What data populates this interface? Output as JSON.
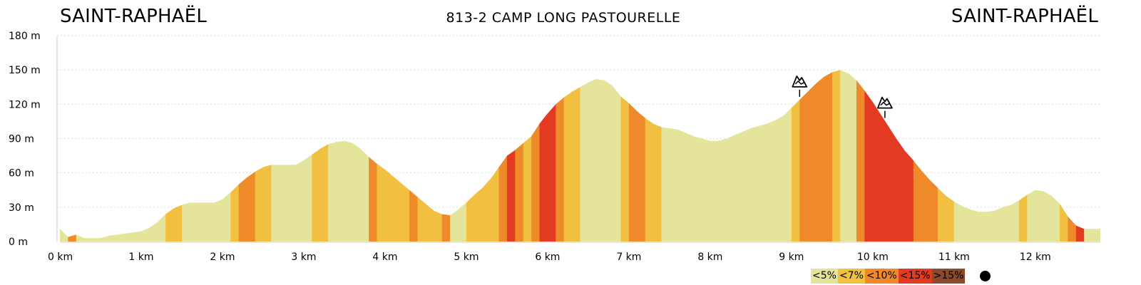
{
  "header": {
    "start": "SAINT-RAPHAËL",
    "route": "813-2 CAMP LONG PASTOURELLE",
    "end": "SAINT-RAPHAËL"
  },
  "colors": {
    "lt5": "#e4e49a",
    "lt7": "#f2c040",
    "lt10": "#ee8a2a",
    "lt15": "#e33b22",
    "gt15": "#8c4a2c",
    "grid": "#dddddd",
    "axis": "#cccccc"
  },
  "legend": [
    {
      "label": "<5%",
      "key": "lt5"
    },
    {
      "label": "<7%",
      "key": "lt7"
    },
    {
      "label": "<10%",
      "key": "lt10"
    },
    {
      "label": "<15%",
      "key": "lt15"
    },
    {
      "label": ">15%",
      "key": "gt15"
    }
  ],
  "chart_data": {
    "type": "area",
    "xlabel": "",
    "ylabel": "",
    "xlim": [
      0,
      12.8
    ],
    "ylim": [
      0,
      180
    ],
    "x_ticks": [
      {
        "value": 0,
        "label": "0 km"
      },
      {
        "value": 1,
        "label": "1 km"
      },
      {
        "value": 2,
        "label": "2 km"
      },
      {
        "value": 3,
        "label": "3 km"
      },
      {
        "value": 4,
        "label": "4 km"
      },
      {
        "value": 5,
        "label": "5 km"
      },
      {
        "value": 6,
        "label": "6 km"
      },
      {
        "value": 7,
        "label": "7 km"
      },
      {
        "value": 8,
        "label": "8 km"
      },
      {
        "value": 9,
        "label": "9 km"
      },
      {
        "value": 10,
        "label": "10 km"
      },
      {
        "value": 11,
        "label": "11 km"
      },
      {
        "value": 12,
        "label": "12 km"
      }
    ],
    "y_ticks": [
      {
        "value": 0,
        "label": "0 m"
      },
      {
        "value": 30,
        "label": "30 m"
      },
      {
        "value": 60,
        "label": "60 m"
      },
      {
        "value": 90,
        "label": "90 m"
      },
      {
        "value": 120,
        "label": "120 m"
      },
      {
        "value": 150,
        "label": "150 m"
      },
      {
        "value": 180,
        "label": "180 m"
      }
    ],
    "grid": true,
    "profile": [
      [
        0,
        11
      ],
      [
        0.1,
        4
      ],
      [
        0.2,
        6
      ],
      [
        0.3,
        3
      ],
      [
        0.4,
        3
      ],
      [
        0.5,
        3
      ],
      [
        0.6,
        5
      ],
      [
        0.8,
        7
      ],
      [
        1.0,
        9
      ],
      [
        1.1,
        12
      ],
      [
        1.2,
        17
      ],
      [
        1.3,
        24
      ],
      [
        1.4,
        29
      ],
      [
        1.5,
        32
      ],
      [
        1.6,
        34
      ],
      [
        1.8,
        34
      ],
      [
        1.9,
        34
      ],
      [
        2.0,
        37
      ],
      [
        2.1,
        43
      ],
      [
        2.2,
        50
      ],
      [
        2.3,
        56
      ],
      [
        2.4,
        61
      ],
      [
        2.5,
        65
      ],
      [
        2.6,
        67
      ],
      [
        2.7,
        67
      ],
      [
        2.9,
        67
      ],
      [
        3.0,
        71
      ],
      [
        3.1,
        76
      ],
      [
        3.2,
        81
      ],
      [
        3.3,
        85
      ],
      [
        3.4,
        87
      ],
      [
        3.5,
        88
      ],
      [
        3.6,
        86
      ],
      [
        3.7,
        81
      ],
      [
        3.8,
        74
      ],
      [
        3.9,
        68
      ],
      [
        4.0,
        63
      ],
      [
        4.1,
        57
      ],
      [
        4.2,
        51
      ],
      [
        4.3,
        45
      ],
      [
        4.4,
        39
      ],
      [
        4.5,
        33
      ],
      [
        4.6,
        27
      ],
      [
        4.7,
        24
      ],
      [
        4.8,
        23
      ],
      [
        4.9,
        28
      ],
      [
        5.0,
        34
      ],
      [
        5.1,
        41
      ],
      [
        5.2,
        47
      ],
      [
        5.3,
        55
      ],
      [
        5.4,
        65
      ],
      [
        5.5,
        75
      ],
      [
        5.6,
        80
      ],
      [
        5.7,
        86
      ],
      [
        5.8,
        92
      ],
      [
        5.9,
        103
      ],
      [
        6.0,
        112
      ],
      [
        6.1,
        120
      ],
      [
        6.2,
        126
      ],
      [
        6.3,
        131
      ],
      [
        6.4,
        135
      ],
      [
        6.5,
        139
      ],
      [
        6.6,
        142
      ],
      [
        6.7,
        141
      ],
      [
        6.8,
        136
      ],
      [
        6.9,
        127
      ],
      [
        7.0,
        121
      ],
      [
        7.1,
        114
      ],
      [
        7.2,
        108
      ],
      [
        7.3,
        103
      ],
      [
        7.4,
        100
      ],
      [
        7.5,
        99
      ],
      [
        7.6,
        98
      ],
      [
        7.7,
        95
      ],
      [
        7.8,
        92
      ],
      [
        7.9,
        90
      ],
      [
        8.0,
        88
      ],
      [
        8.1,
        88
      ],
      [
        8.2,
        90
      ],
      [
        8.3,
        93
      ],
      [
        8.4,
        96
      ],
      [
        8.5,
        99
      ],
      [
        8.6,
        101
      ],
      [
        8.7,
        103
      ],
      [
        8.8,
        106
      ],
      [
        8.9,
        110
      ],
      [
        9.0,
        117
      ],
      [
        9.1,
        124
      ],
      [
        9.2,
        131
      ],
      [
        9.3,
        138
      ],
      [
        9.4,
        144
      ],
      [
        9.5,
        148
      ],
      [
        9.6,
        150
      ],
      [
        9.7,
        147
      ],
      [
        9.8,
        141
      ],
      [
        9.9,
        132
      ],
      [
        10.0,
        122
      ],
      [
        10.1,
        111
      ],
      [
        10.2,
        100
      ],
      [
        10.3,
        89
      ],
      [
        10.4,
        79
      ],
      [
        10.5,
        71
      ],
      [
        10.6,
        62
      ],
      [
        10.7,
        54
      ],
      [
        10.8,
        47
      ],
      [
        10.9,
        40
      ],
      [
        11.0,
        35
      ],
      [
        11.1,
        31
      ],
      [
        11.2,
        28
      ],
      [
        11.3,
        26
      ],
      [
        11.4,
        26
      ],
      [
        11.5,
        27
      ],
      [
        11.6,
        30
      ],
      [
        11.7,
        32
      ],
      [
        11.8,
        36
      ],
      [
        11.9,
        41
      ],
      [
        12.0,
        45
      ],
      [
        12.1,
        44
      ],
      [
        12.2,
        40
      ],
      [
        12.3,
        33
      ],
      [
        12.4,
        22
      ],
      [
        12.5,
        14
      ],
      [
        12.6,
        11
      ],
      [
        12.8,
        11
      ]
    ],
    "gradient_segments": [
      [
        0.0,
        0.1,
        "lt5"
      ],
      [
        0.1,
        0.2,
        "lt10"
      ],
      [
        0.2,
        1.3,
        "lt5"
      ],
      [
        1.3,
        1.5,
        "lt7"
      ],
      [
        1.5,
        2.1,
        "lt5"
      ],
      [
        2.1,
        2.2,
        "lt7"
      ],
      [
        2.2,
        2.4,
        "lt10"
      ],
      [
        2.4,
        2.6,
        "lt7"
      ],
      [
        2.6,
        3.1,
        "lt5"
      ],
      [
        3.1,
        3.3,
        "lt7"
      ],
      [
        3.3,
        3.8,
        "lt5"
      ],
      [
        3.8,
        3.9,
        "lt10"
      ],
      [
        3.9,
        4.3,
        "lt7"
      ],
      [
        4.3,
        4.4,
        "lt10"
      ],
      [
        4.4,
        4.7,
        "lt7"
      ],
      [
        4.7,
        4.8,
        "lt10"
      ],
      [
        4.8,
        5.0,
        "lt5"
      ],
      [
        5.0,
        5.4,
        "lt7"
      ],
      [
        5.4,
        5.5,
        "lt10"
      ],
      [
        5.5,
        5.6,
        "lt15"
      ],
      [
        5.6,
        5.7,
        "lt10"
      ],
      [
        5.7,
        5.8,
        "lt7"
      ],
      [
        5.8,
        5.9,
        "lt10"
      ],
      [
        5.9,
        6.1,
        "lt15"
      ],
      [
        6.1,
        6.2,
        "lt10"
      ],
      [
        6.2,
        6.4,
        "lt7"
      ],
      [
        6.4,
        6.9,
        "lt5"
      ],
      [
        6.9,
        7.0,
        "lt7"
      ],
      [
        7.0,
        7.2,
        "lt10"
      ],
      [
        7.2,
        7.4,
        "lt7"
      ],
      [
        7.4,
        9.0,
        "lt5"
      ],
      [
        9.0,
        9.1,
        "lt7"
      ],
      [
        9.1,
        9.5,
        "lt10"
      ],
      [
        9.5,
        9.6,
        "lt7"
      ],
      [
        9.6,
        9.8,
        "lt5"
      ],
      [
        9.8,
        9.9,
        "lt10"
      ],
      [
        9.9,
        10.5,
        "lt15"
      ],
      [
        10.5,
        10.8,
        "lt10"
      ],
      [
        10.8,
        11.0,
        "lt7"
      ],
      [
        11.0,
        11.8,
        "lt5"
      ],
      [
        11.8,
        11.9,
        "lt7"
      ],
      [
        11.9,
        12.3,
        "lt5"
      ],
      [
        12.3,
        12.4,
        "lt7"
      ],
      [
        12.4,
        12.5,
        "lt10"
      ],
      [
        12.5,
        12.6,
        "lt15"
      ],
      [
        12.6,
        12.8,
        "lt5"
      ]
    ],
    "climb_markers": [
      {
        "x": 9.1,
        "icon": "mountain-pass-icon"
      },
      {
        "x": 10.15,
        "icon": "mountain-pass-icon"
      }
    ]
  }
}
